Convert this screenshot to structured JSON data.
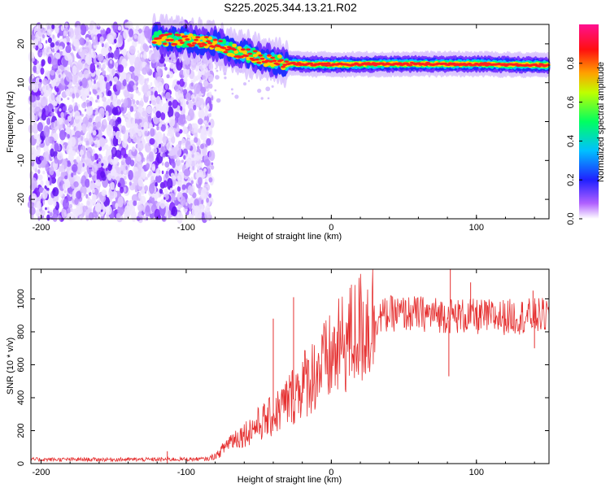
{
  "title": "S225.2025.344.13.21.R02",
  "chart_data": [
    {
      "type": "heatmap",
      "name": "spectrogram",
      "xlabel": "Height of straight line (km)",
      "ylabel": "Frequency (Hz)",
      "xlim": [
        -207,
        150
      ],
      "ylim": [
        -25,
        25
      ],
      "xticks": [
        -200,
        -100,
        0,
        100
      ],
      "yticks": [
        -20,
        -10,
        0,
        10,
        20
      ],
      "colorbar": {
        "label": "Normalized spectral amplitude",
        "range": [
          0,
          1
        ],
        "ticks": [
          0.0,
          0.2,
          0.4,
          0.6,
          0.8
        ]
      },
      "features": {
        "noise_region_x": [
          -207,
          -82
        ],
        "signal_line": [
          {
            "x": -122,
            "f": 21.5
          },
          {
            "x": -105,
            "f": 21.0
          },
          {
            "x": -90,
            "f": 20.5
          },
          {
            "x": -80,
            "f": 20.0
          },
          {
            "x": -70,
            "f": 18.5
          },
          {
            "x": -60,
            "f": 17.5
          },
          {
            "x": -50,
            "f": 16.5
          },
          {
            "x": -40,
            "f": 15.5
          },
          {
            "x": -30,
            "f": 15.0
          },
          {
            "x": -20,
            "f": 14.8
          },
          {
            "x": 0,
            "f": 14.7
          },
          {
            "x": 50,
            "f": 14.8
          },
          {
            "x": 100,
            "f": 14.8
          },
          {
            "x": 150,
            "f": 14.5
          }
        ]
      }
    },
    {
      "type": "line",
      "name": "snr",
      "xlabel": "Height of straight line (km)",
      "ylabel": "SNR (10 * v/v)",
      "xlim": [
        -207,
        150
      ],
      "ylim": [
        0,
        1180
      ],
      "xticks": [
        -200,
        -100,
        0,
        100
      ],
      "yticks": [
        0,
        200,
        400,
        600,
        800,
        1000
      ],
      "color": "#e53030",
      "trend": [
        {
          "x": -207,
          "y": 25
        },
        {
          "x": -120,
          "y": 25
        },
        {
          "x": -85,
          "y": 28
        },
        {
          "x": -78,
          "y": 55
        },
        {
          "x": -70,
          "y": 140
        },
        {
          "x": -60,
          "y": 180
        },
        {
          "x": -50,
          "y": 240
        },
        {
          "x": -40,
          "y": 290
        },
        {
          "x": -30,
          "y": 380
        },
        {
          "x": -20,
          "y": 480
        },
        {
          "x": -10,
          "y": 560
        },
        {
          "x": 0,
          "y": 640
        },
        {
          "x": 10,
          "y": 740
        },
        {
          "x": 20,
          "y": 820
        },
        {
          "x": 30,
          "y": 880
        },
        {
          "x": 40,
          "y": 910
        },
        {
          "x": 60,
          "y": 910
        },
        {
          "x": 80,
          "y": 900
        },
        {
          "x": 100,
          "y": 890
        },
        {
          "x": 120,
          "y": 890
        },
        {
          "x": 150,
          "y": 900
        }
      ],
      "spikes": [
        {
          "x": -113,
          "y": 75
        },
        {
          "x": -40,
          "y": 880
        },
        {
          "x": -26,
          "y": 1010
        },
        {
          "x": 82,
          "y": 1180
        },
        {
          "x": 81,
          "y": 530
        },
        {
          "x": 96,
          "y": 1100
        },
        {
          "x": 139,
          "y": 1050
        },
        {
          "x": 140,
          "y": 700
        }
      ]
    }
  ]
}
